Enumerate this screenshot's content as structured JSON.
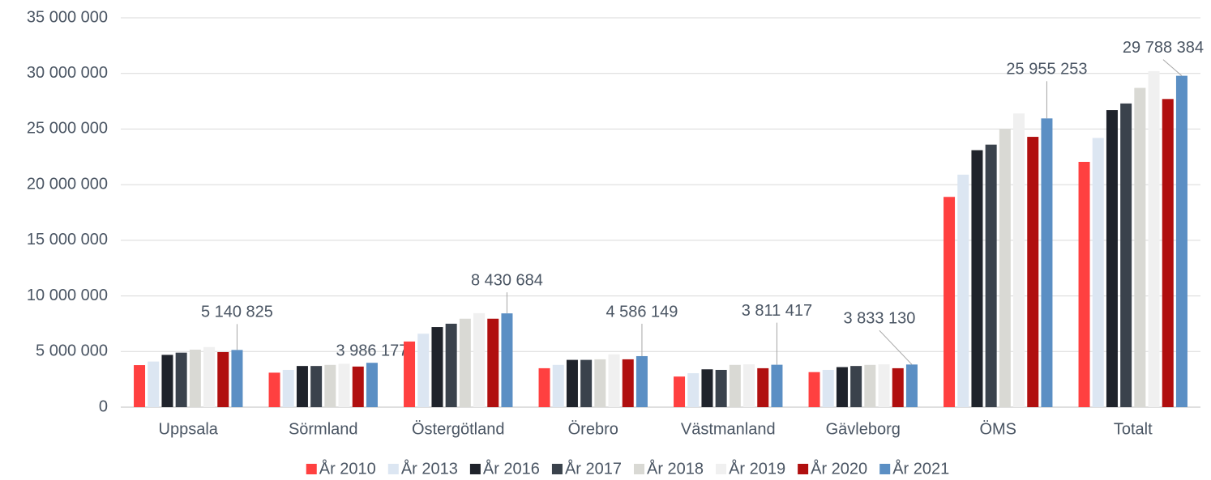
{
  "chart_data": {
    "type": "bar",
    "categories": [
      "Uppsala",
      "Sörmland",
      "Östergötland",
      "Örebro",
      "Västmanland",
      "Gävleborg",
      "ÖMS",
      "Totalt"
    ],
    "series": [
      {
        "name": "År 2010",
        "color": "#ff4040",
        "values": [
          3780000,
          3100000,
          5900000,
          3500000,
          2750000,
          3150000,
          18900000,
          22050000
        ]
      },
      {
        "name": "År 2013",
        "color": "#dce6f2",
        "values": [
          4100000,
          3350000,
          6600000,
          3800000,
          3050000,
          3350000,
          20900000,
          24200000
        ]
      },
      {
        "name": "År 2016",
        "color": "#1f232b",
        "values": [
          4700000,
          3700000,
          7200000,
          4250000,
          3400000,
          3600000,
          23100000,
          26700000
        ]
      },
      {
        "name": "År 2017",
        "color": "#3a424c",
        "values": [
          4900000,
          3700000,
          7500000,
          4250000,
          3350000,
          3700000,
          23600000,
          27300000
        ]
      },
      {
        "name": "År 2018",
        "color": "#d9d9d4",
        "values": [
          5170000,
          3800000,
          7950000,
          4300000,
          3800000,
          3800000,
          25000000,
          28700000
        ]
      },
      {
        "name": "År 2019",
        "color": "#f0f0f0",
        "values": [
          5400000,
          3900000,
          8450000,
          4750000,
          3850000,
          3850000,
          26400000,
          30200000
        ]
      },
      {
        "name": "År 2020",
        "color": "#b00f0f",
        "values": [
          4950000,
          3650000,
          7950000,
          4300000,
          3500000,
          3500000,
          24300000,
          27700000
        ]
      },
      {
        "name": "År 2021",
        "color": "#5b8fc4",
        "values": [
          5140825,
          3986177,
          8430684,
          4586149,
          3811417,
          3833130,
          25955253,
          29788384
        ],
        "value_labels": [
          "5 140 825",
          "3 986 177",
          "8 430 684",
          "4 586 149",
          "3 811 417",
          "3 833 130",
          "25 955 253",
          "29 788 384"
        ]
      }
    ],
    "ylim": [
      0,
      35000000
    ],
    "yticks": [
      0,
      {
        "value": 5000000,
        "label": "5 000 000"
      },
      {
        "value": 10000000,
        "label": "10 000 000"
      },
      {
        "value": 15000000,
        "label": "15 000 000"
      },
      {
        "value": 20000000,
        "label": "20 000 000"
      },
      {
        "value": 25000000,
        "label": "25 000 000"
      },
      {
        "value": 30000000,
        "label": "30 000 000"
      },
      {
        "value": 35000000,
        "label": "35 000 000"
      }
    ],
    "grid": true,
    "legend": "bottom"
  }
}
